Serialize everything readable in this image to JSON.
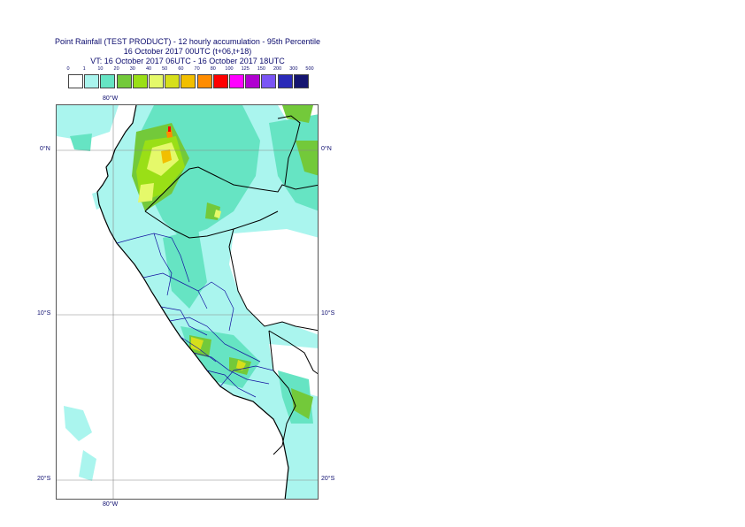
{
  "title": {
    "line1": "Point Rainfall (TEST PRODUCT) - 12 hourly accumulation - 95th Percentile",
    "line2": "16 October 2017 00UTC (t+06,t+18)",
    "line3": "VT: 16 October 2017 06UTC - 16 October 2017 18UTC"
  },
  "legend": {
    "labels": [
      "0",
      "1",
      "10",
      "20",
      "30",
      "40",
      "50",
      "60",
      "70",
      "80",
      "100",
      "125",
      "150",
      "200",
      "300",
      "500"
    ],
    "colors": [
      "#ffffff",
      "#aaf5ee",
      "#66e4c3",
      "#73c93a",
      "#9adf16",
      "#e5f96a",
      "#d6df1b",
      "#f2bf00",
      "#ff8c00",
      "#ff0000",
      "#ff00ff",
      "#b000d0",
      "#7a55f5",
      "#2a2ab8",
      "#141470"
    ]
  },
  "axes": {
    "lon_top": "80°W",
    "lon_bottom": "80°W",
    "lat_0_left": "0°N",
    "lat_0_right": "0°N",
    "lat_10_left": "10°S",
    "lat_10_right": "10°S",
    "lat_20_left": "20°S",
    "lat_20_right": "20°S"
  }
}
